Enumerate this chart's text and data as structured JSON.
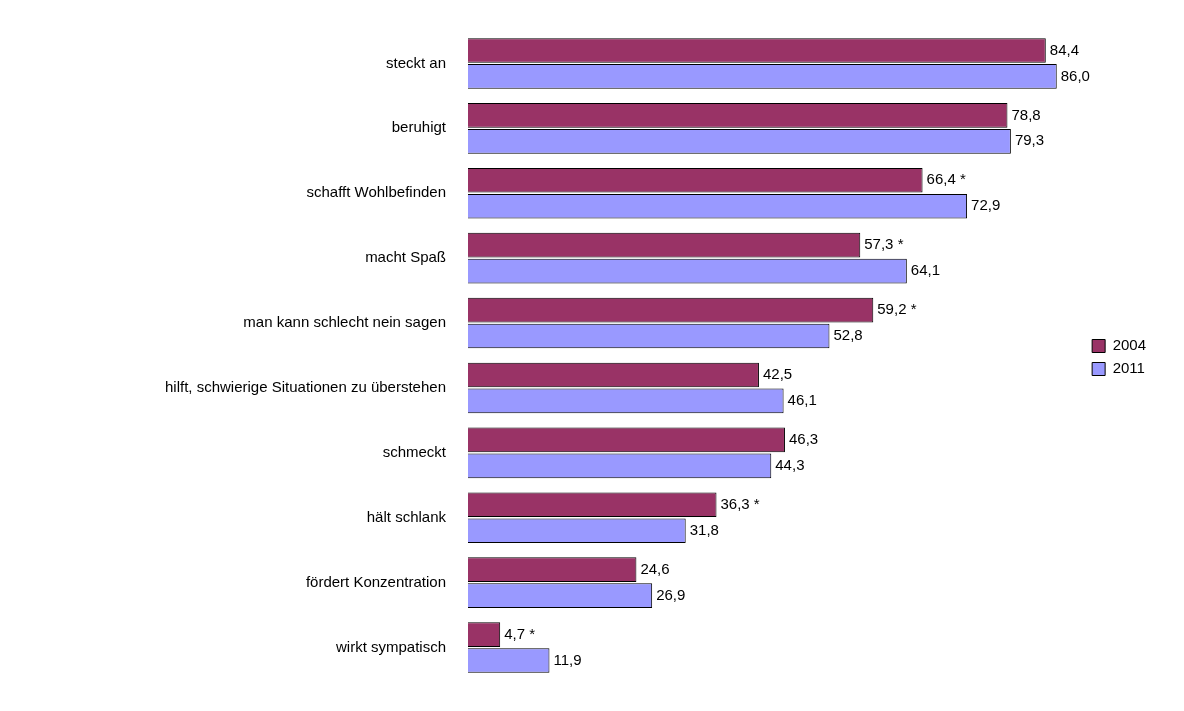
{
  "chart_data": {
    "type": "bar",
    "orientation": "horizontal",
    "categories": [
      "steckt an",
      "beruhigt",
      "schafft Wohlbefinden",
      "macht Spaß",
      "man kann schlecht nein sagen",
      "hilft, schwierige Situationen zu überstehen",
      "schmeckt",
      "hält schlank",
      "fördert Konzentration",
      "wirkt sympatisch"
    ],
    "series": [
      {
        "name": "2004",
        "color": "#993366",
        "values": [
          84.4,
          78.8,
          66.4,
          57.3,
          59.2,
          42.5,
          46.3,
          36.3,
          24.6,
          4.7
        ],
        "value_labels": [
          "84,4",
          "78,8",
          "66,4 *",
          "57,3 *",
          "59,2 *",
          "42,5",
          "46,3",
          "36,3 *",
          "24,6",
          "4,7 *"
        ]
      },
      {
        "name": "2011",
        "color": "#9999ff",
        "values": [
          86.0,
          79.3,
          72.9,
          64.1,
          52.8,
          46.1,
          44.3,
          31.8,
          26.9,
          11.9
        ],
        "value_labels": [
          "86,0",
          "79,3",
          "72,9",
          "64,1",
          "52,8",
          "46,1",
          "44,3",
          "31,8",
          "26,9",
          "11,9"
        ]
      }
    ],
    "legend": "right"
  }
}
